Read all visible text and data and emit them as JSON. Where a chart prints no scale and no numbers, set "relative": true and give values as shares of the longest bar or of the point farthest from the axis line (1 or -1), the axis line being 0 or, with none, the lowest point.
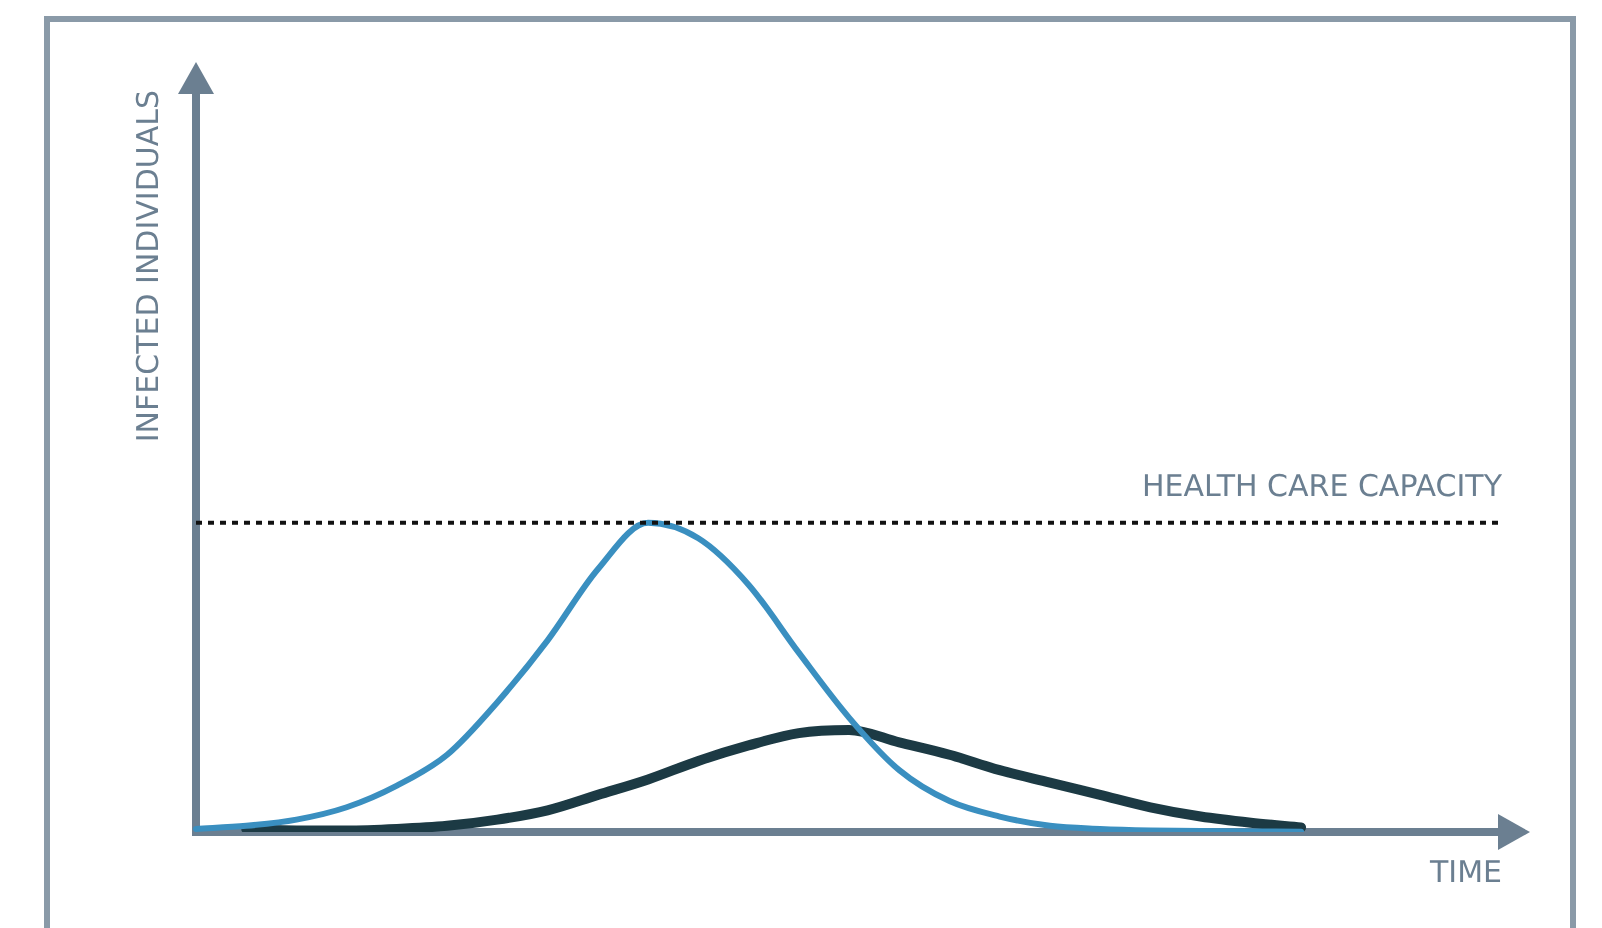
{
  "chart_data": {
    "type": "line",
    "xlabel": "TIME",
    "ylabel": "INFECTED INDIVIDUALS",
    "relative": true,
    "legend": false,
    "grid": false,
    "marker": "none",
    "categories": [
      null,
      null,
      null,
      null,
      null,
      null,
      null,
      null,
      null,
      null,
      null,
      null,
      null,
      null,
      null,
      null,
      null,
      null,
      null,
      null,
      null,
      null,
      null,
      null,
      null,
      null,
      null
    ],
    "series": [
      {
        "color": "#3a8fc0",
        "values": [
          0.01,
          0.02,
          0.04,
          0.08,
          0.15,
          0.25,
          0.42,
          0.62,
          0.85,
          1,
          0.95,
          0.8,
          0.58,
          0.37,
          0.2,
          0.1,
          0.05,
          0.02,
          0.01,
          0.005,
          0.003,
          0.002,
          0.001,
          null,
          null,
          null,
          null
        ]
      },
      {
        "color": "#1c3a44",
        "values": [
          null,
          0.01,
          0.005,
          0.005,
          0.01,
          0.02,
          0.04,
          0.07,
          0.12,
          0.17,
          0.23,
          0.28,
          0.32,
          0.33,
          0.29,
          0.25,
          0.2,
          0.16,
          0.12,
          0.08,
          0.05,
          0.03,
          0.015,
          null,
          null,
          null,
          null
        ]
      }
    ],
    "ref_lines": [
      {
        "axis": "y",
        "value": 1,
        "label": "HEALTH CARE CAPACITY",
        "color": "#111111",
        "line_style": "dotted"
      }
    ]
  }
}
